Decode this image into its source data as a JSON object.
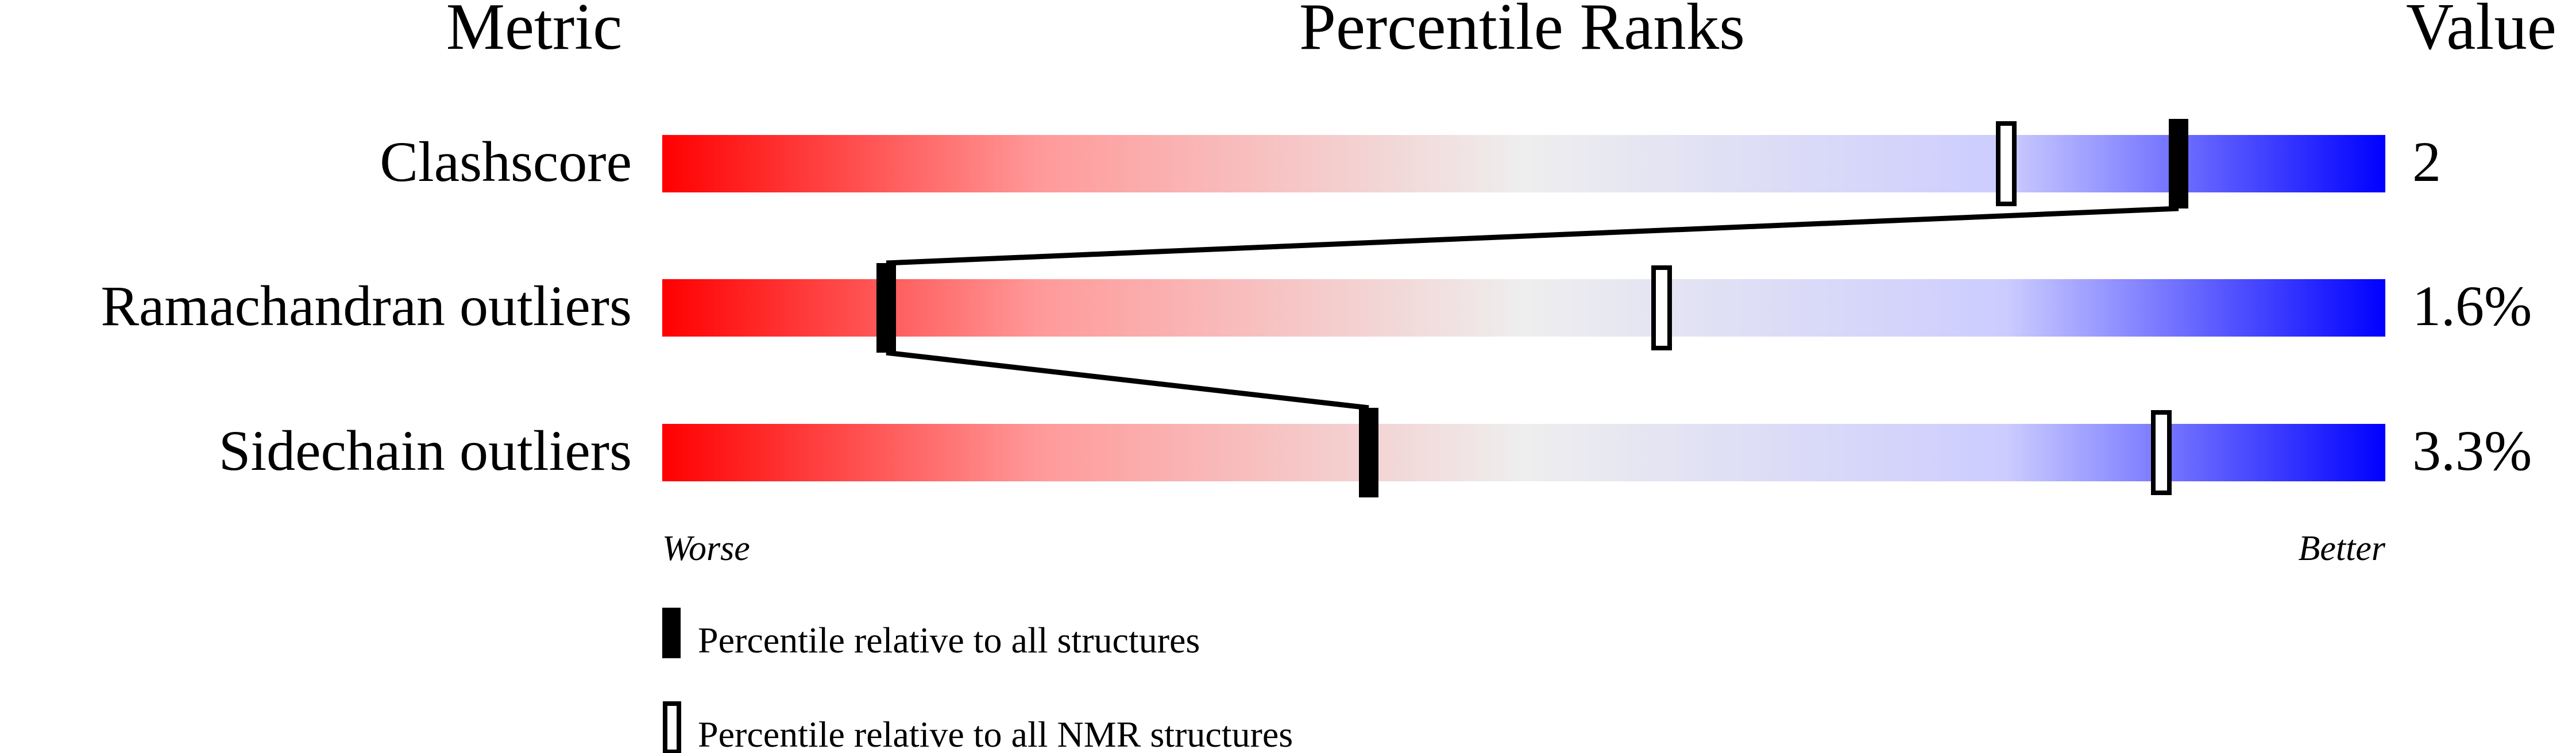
{
  "chart_data": {
    "type": "bar",
    "title": "",
    "headers": {
      "metric": "Metric",
      "ranks": "Percentile Ranks",
      "value": "Value"
    },
    "xlim": [
      0,
      100
    ],
    "axis_labels": {
      "left": "Worse",
      "right": "Better"
    },
    "gradient_colors": {
      "worse": "#ff0000",
      "middle": "#eeeeee",
      "better": "#0000ff"
    },
    "metrics": [
      {
        "name": "Clashscore",
        "value": "2",
        "percentile_all": 88,
        "percentile_nmr": 78
      },
      {
        "name": "Ramachandran outliers",
        "value": "1.6%",
        "percentile_all": 13,
        "percentile_nmr": 58
      },
      {
        "name": "Sidechain outliers",
        "value": "3.3%",
        "percentile_all": 41,
        "percentile_nmr": 87
      }
    ],
    "legend": [
      {
        "marker": "filled",
        "label": "Percentile relative to all structures"
      },
      {
        "marker": "open",
        "label": "Percentile relative to all NMR structures"
      }
    ]
  }
}
